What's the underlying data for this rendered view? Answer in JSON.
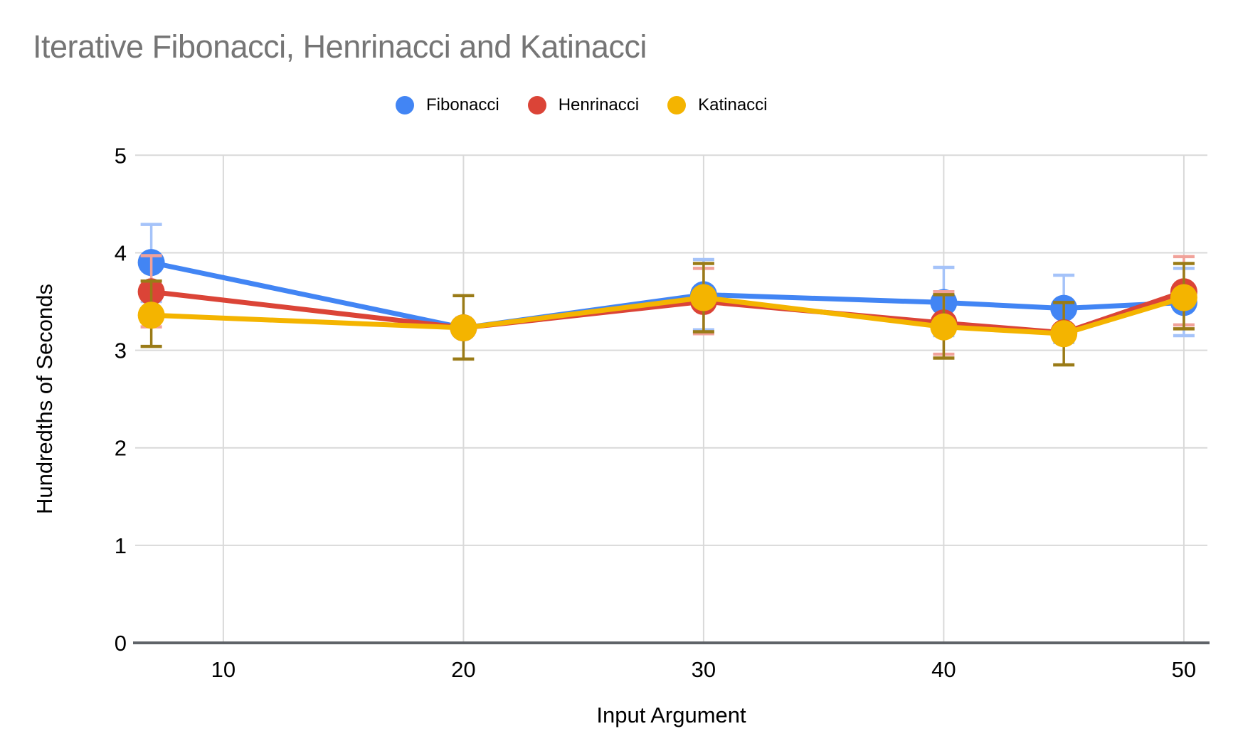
{
  "title": "Iterative Fibonacci, Henrinacci and Katinacci",
  "colors": {
    "background": "#ffffff",
    "title": "#757575",
    "grid": "#d9d9d9",
    "axis_line": "#5f6368",
    "tick_label": "#000000"
  },
  "legend": {
    "items": [
      "Fibonacci",
      "Henrinacci",
      "Katinacci"
    ]
  },
  "chart_data": {
    "type": "line",
    "title": "Iterative Fibonacci, Henrinacci and Katinacci",
    "xlabel": "Input Argument",
    "ylabel": "Hundredths of Seconds",
    "x": [
      7,
      20,
      30,
      40,
      45,
      50
    ],
    "x_ticks": [
      10,
      20,
      30,
      40,
      50
    ],
    "y_ticks": [
      0,
      1,
      2,
      3,
      4,
      5
    ],
    "xlim": [
      6.33,
      50.98
    ],
    "ylim": [
      0,
      5
    ],
    "grid": true,
    "legend_position": "top-center",
    "point_style": "filled-circle",
    "error_bars": true,
    "series": [
      {
        "name": "Fibonacci",
        "color": "#4285F4",
        "error_color": "#A5C3F9",
        "values": [
          3.9,
          3.23,
          3.57,
          3.49,
          3.43,
          3.49
        ],
        "error_low": [
          3.5,
          null,
          3.21,
          3.15,
          3.08,
          3.15
        ],
        "error_high": [
          4.29,
          null,
          3.93,
          3.85,
          3.77,
          3.84
        ]
      },
      {
        "name": "Henrinacci",
        "color": "#DB4437",
        "error_color": "#F1A29A",
        "values": [
          3.6,
          3.23,
          3.5,
          3.28,
          3.18,
          3.6
        ],
        "error_low": [
          3.24,
          null,
          3.17,
          2.96,
          null,
          3.26
        ],
        "error_high": [
          3.97,
          null,
          3.84,
          3.6,
          null,
          3.96
        ]
      },
      {
        "name": "Katinacci",
        "color": "#F4B400",
        "error_color": "#9A7B17",
        "values": [
          3.36,
          3.23,
          3.54,
          3.24,
          3.17,
          3.54
        ],
        "error_low": [
          3.04,
          2.91,
          3.19,
          2.92,
          2.85,
          3.22
        ],
        "error_high": [
          3.71,
          3.56,
          3.89,
          3.57,
          3.49,
          3.89
        ]
      }
    ]
  }
}
